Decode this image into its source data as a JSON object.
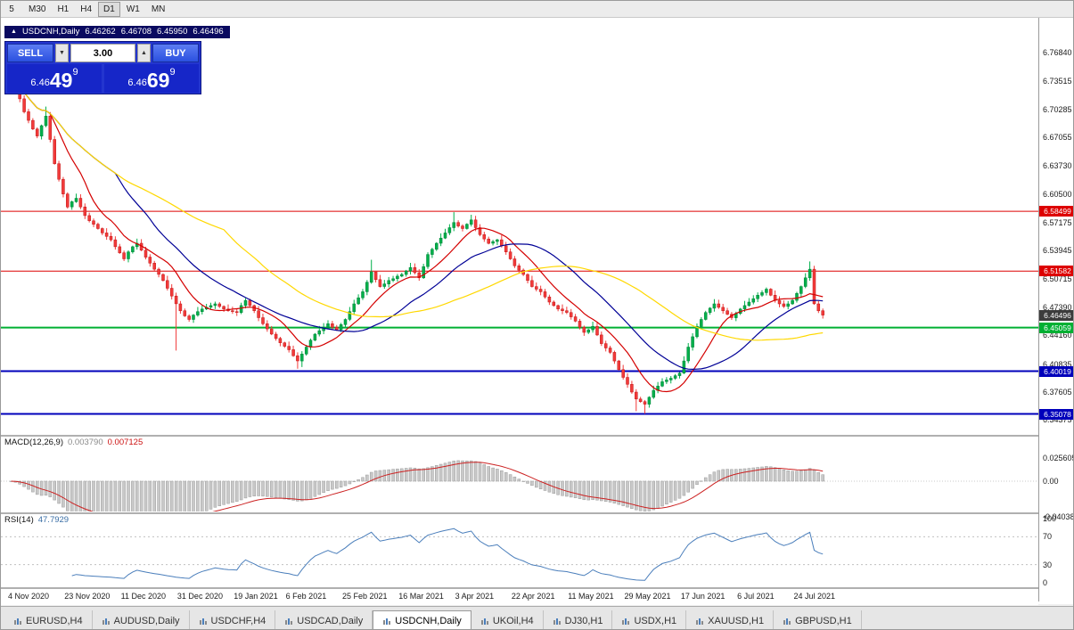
{
  "timeframes": {
    "items": [
      "5",
      "M30",
      "H1",
      "H4",
      "D1",
      "W1",
      "MN"
    ],
    "active": "D1"
  },
  "header": {
    "symbol": "USDCNH,Daily",
    "o": "6.46262",
    "h": "6.46708",
    "l": "6.45950",
    "c": "6.46496"
  },
  "trade": {
    "sell_label": "SELL",
    "buy_label": "BUY",
    "volume": "3.00",
    "sell_price": {
      "big": "6.46",
      "pips": "49",
      "pip_sup": "9"
    },
    "buy_price": {
      "big": "6.46",
      "pips": "69",
      "pip_sup": "9"
    }
  },
  "price_scale": [
    "6.76840",
    "6.73515",
    "6.70285",
    "6.67055",
    "6.63730",
    "6.60500",
    "6.57175",
    "6.53945",
    "6.50715",
    "6.47390",
    "6.44160",
    "6.40835",
    "6.37605",
    "6.34375"
  ],
  "current_price": "6.46496",
  "macd": {
    "label": "MACD(12,26,9)",
    "main_value": "0.003790",
    "signal_value": "0.007125",
    "axis_top": "0.025605",
    "axis_zero": "0.00",
    "axis_bottom": "-0.04038"
  },
  "rsi": {
    "label": "RSI(14)",
    "value": "47.7929",
    "levels": [
      100,
      70,
      30,
      0
    ]
  },
  "tabs": {
    "items": [
      {
        "label": "EURUSD,H4",
        "active": false
      },
      {
        "label": "AUDUSD,Daily",
        "active": false
      },
      {
        "label": "USDCHF,H4",
        "active": false
      },
      {
        "label": "USDCAD,Daily",
        "active": false
      },
      {
        "label": "USDCNH,Daily",
        "active": true
      },
      {
        "label": "UKOil,H4",
        "active": false
      },
      {
        "label": "DJ30,H1",
        "active": false
      },
      {
        "label": "USDX,H1",
        "active": false
      },
      {
        "label": "XAUUSD,H1",
        "active": false
      },
      {
        "label": "GBPUSD,H1",
        "active": false
      }
    ]
  },
  "chart_data": {
    "type": "candlestick",
    "symbol": "USDCNH",
    "timeframe": "Daily",
    "first_open": 6.758,
    "closes": [
      6.745,
      6.73,
      6.715,
      6.7,
      6.69,
      6.68,
      6.672,
      6.684,
      6.695,
      6.668,
      6.64,
      6.622,
      6.605,
      6.59,
      6.596,
      6.6,
      6.59,
      6.58,
      6.574,
      6.57,
      6.565,
      6.56,
      6.556,
      6.552,
      6.544,
      6.537,
      6.53,
      6.538,
      6.544,
      6.548,
      6.54,
      6.532,
      6.525,
      6.518,
      6.512,
      6.505,
      6.496,
      6.487,
      6.478,
      6.47,
      6.464,
      6.46,
      6.465,
      6.469,
      6.472,
      6.474,
      6.476,
      6.478,
      6.475,
      6.472,
      6.47,
      6.469,
      6.468,
      6.476,
      6.482,
      6.476,
      6.47,
      6.462,
      6.455,
      6.449,
      6.443,
      6.438,
      6.433,
      6.429,
      6.425,
      6.418,
      6.412,
      6.42,
      6.428,
      6.436,
      6.443,
      6.447,
      6.451,
      6.455,
      6.451,
      6.448,
      6.454,
      6.46,
      6.469,
      6.478,
      6.485,
      6.492,
      6.503,
      6.515,
      6.506,
      6.498,
      6.501,
      6.505,
      6.507,
      6.51,
      6.512,
      6.516,
      6.52,
      6.514,
      6.508,
      6.521,
      6.535,
      6.541,
      6.548,
      6.554,
      6.56,
      6.566,
      6.572,
      6.568,
      6.565,
      6.57,
      6.575,
      6.566,
      6.558,
      6.553,
      6.548,
      6.55,
      6.552,
      6.545,
      6.538,
      6.53,
      6.522,
      6.517,
      6.512,
      6.505,
      6.498,
      6.495,
      6.492,
      6.486,
      6.48,
      6.476,
      6.472,
      6.47,
      6.468,
      6.463,
      6.458,
      6.451,
      6.445,
      6.448,
      6.452,
      6.442,
      6.432,
      6.427,
      6.422,
      6.412,
      6.402,
      6.393,
      6.385,
      6.376,
      6.368,
      6.365,
      6.362,
      6.37,
      6.378,
      6.383,
      6.388,
      6.39,
      6.392,
      6.395,
      6.398,
      6.412,
      6.428,
      6.44,
      6.452,
      6.46,
      6.468,
      6.473,
      6.478,
      6.474,
      6.47,
      6.466,
      6.462,
      6.467,
      6.472,
      6.476,
      6.48,
      6.484,
      6.488,
      6.491,
      6.495,
      6.488,
      6.482,
      6.478,
      6.475,
      6.478,
      6.482,
      6.49,
      6.498,
      6.508,
      6.518,
      6.478,
      6.47,
      6.465
    ],
    "wicks": {
      "0": {
        "h": 6.778
      },
      "8": {
        "h": 6.706
      },
      "38": {
        "l": 6.424
      },
      "66": {
        "l": 6.403
      },
      "67": {
        "l": 6.405
      },
      "83": {
        "h": 6.529
      },
      "102": {
        "h": 6.584
      },
      "106": {
        "h": 6.581
      },
      "144": {
        "l": 6.354
      },
      "146": {
        "l": 6.351
      },
      "184": {
        "h": 6.527
      }
    },
    "colors": {
      "up": "#00b04a",
      "up_stroke": "#008038",
      "down": "#f23a3a",
      "down_stroke": "#c01818"
    },
    "moving_averages": [
      {
        "period": 10,
        "color": "#d40000"
      },
      {
        "period": 25,
        "color": "#000096"
      },
      {
        "period": 50,
        "color": "#ffd800"
      }
    ],
    "hlines": [
      {
        "price": 6.58499,
        "label": "6.58499",
        "color": "#dd0000",
        "width": 1
      },
      {
        "price": 6.51582,
        "label": "6.51582",
        "color": "#dd0000",
        "width": 1
      },
      {
        "price": 6.45059,
        "label": "6.45059",
        "color": "#00b033",
        "width": 2
      },
      {
        "price": 6.40019,
        "label": "6.40019",
        "color": "#0000bb",
        "width": 2
      },
      {
        "price": 6.35078,
        "label": "6.35078",
        "color": "#0000bb",
        "width": 2
      }
    ],
    "x_labels": [
      {
        "t": "4 Nov 2020",
        "i": 0
      },
      {
        "t": "23 Nov 2020",
        "i": 13
      },
      {
        "t": "11 Dec 2020",
        "i": 26
      },
      {
        "t": "31 Dec 2020",
        "i": 39
      },
      {
        "t": "19 Jan 2021",
        "i": 52
      },
      {
        "t": "6 Feb 2021",
        "i": 64
      },
      {
        "t": "25 Feb 2021",
        "i": 77
      },
      {
        "t": "16 Mar 2021",
        "i": 90
      },
      {
        "t": "3 Apr 2021",
        "i": 103
      },
      {
        "t": "22 Apr 2021",
        "i": 116
      },
      {
        "t": "11 May 2021",
        "i": 129
      },
      {
        "t": "29 May 2021",
        "i": 142
      },
      {
        "t": "17 Jun 2021",
        "i": 155
      },
      {
        "t": "6 Jul 2021",
        "i": 168
      },
      {
        "t": "24 Jul 2021",
        "i": 181
      }
    ],
    "indicators": {
      "macd": {
        "fast": 12,
        "slow": 26,
        "signal": 9
      },
      "rsi": {
        "period": 14
      }
    }
  }
}
